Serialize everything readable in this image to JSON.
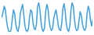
{
  "chart_data": {
    "type": "line",
    "x": [
      0,
      1,
      2,
      3,
      4,
      5,
      6,
      7,
      8,
      9,
      10,
      11,
      12,
      13,
      14,
      15,
      16,
      17,
      18,
      19,
      20,
      21,
      22,
      23,
      24,
      25,
      26,
      27,
      28,
      29,
      30,
      31,
      32,
      33,
      34,
      35,
      36,
      37,
      38,
      39,
      40,
      41,
      42,
      43,
      44,
      45,
      46,
      47,
      48,
      49,
      50,
      51,
      52,
      53,
      54,
      55,
      56,
      57,
      58,
      59,
      60,
      61,
      62,
      63,
      64,
      65,
      66,
      67,
      68,
      69,
      70,
      71,
      72,
      73,
      74,
      75,
      76,
      77,
      78,
      79
    ],
    "values": [
      22,
      28,
      34,
      30,
      18,
      10,
      6,
      5,
      8,
      20,
      30,
      26,
      14,
      8,
      6,
      12,
      26,
      32,
      36,
      24,
      12,
      7,
      6,
      9,
      22,
      30,
      28,
      16,
      9,
      8,
      14,
      34,
      38,
      30,
      16,
      8,
      6,
      10,
      28,
      36,
      32,
      18,
      10,
      7,
      9,
      20,
      26,
      30,
      22,
      12,
      8,
      7,
      15,
      32,
      37,
      28,
      14,
      8,
      6,
      12,
      30,
      38,
      34,
      20,
      10,
      7,
      8,
      18,
      28,
      24,
      14,
      9,
      7,
      10,
      26,
      34,
      30,
      18,
      12,
      20
    ],
    "color": "#3f9fde",
    "xlim": [
      0,
      79
    ],
    "ylim": [
      5,
      38
    ],
    "grid": false,
    "tick_labels": false
  }
}
